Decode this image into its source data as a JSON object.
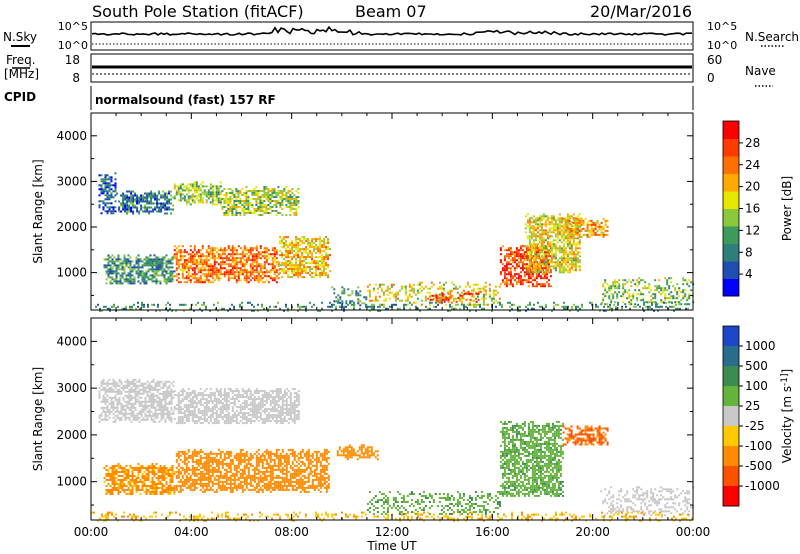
{
  "header": {
    "station": "South Pole Station (fitACF)",
    "beam": "Beam 07",
    "date": "20/Mar/2016"
  },
  "top_panels": {
    "nsky": {
      "label": "N.Sky",
      "tick_top": "10^5",
      "tick_bottom": "10^0"
    },
    "nsearch": {
      "label": "N.Search",
      "tick_top": "10^5",
      "tick_bottom": "10^0"
    },
    "freq": {
      "label_line1": "Freq.",
      "label_line2": "[MHz]",
      "tick_top": "18",
      "tick_bottom": "8"
    },
    "nave": {
      "label": "Nave",
      "tick_top": "60",
      "tick_bottom": "0"
    },
    "cpid": {
      "label": "CPID",
      "value": "normalsound (fast) 157 RF"
    }
  },
  "chart_data": [
    {
      "type": "heatmap",
      "name": "power",
      "ylabel": "Slant Range [km]",
      "ylim": [
        180,
        4500
      ],
      "yticks": [
        "1000",
        "2000",
        "3000",
        "4000"
      ],
      "xlim": [
        0,
        24
      ],
      "colorbar": {
        "label": "Power [dB]",
        "ticks": [
          "4",
          "8",
          "12",
          "16",
          "20",
          "24",
          "28"
        ],
        "range": [
          0,
          32
        ],
        "colors": [
          "#0000ff",
          "#1f4eb0",
          "#2f7e7e",
          "#3c9a5a",
          "#8cc83c",
          "#e6e600",
          "#ffaa00",
          "#ff7000",
          "#ff3c00",
          "#ff0000"
        ]
      },
      "echo_regions": [
        {
          "t0": 0.3,
          "t1": 1.0,
          "r0": 2300,
          "r1": 3200,
          "value": 6
        },
        {
          "t0": 1.0,
          "t1": 3.3,
          "r0": 2300,
          "r1": 2800,
          "value": 8
        },
        {
          "t0": 3.3,
          "t1": 5.2,
          "r0": 2500,
          "r1": 3000,
          "value": 14
        },
        {
          "t0": 5.2,
          "t1": 8.3,
          "r0": 2250,
          "r1": 2900,
          "value": 15
        },
        {
          "t0": 0.5,
          "t1": 3.3,
          "r0": 750,
          "r1": 1400,
          "value": 10
        },
        {
          "t0": 3.3,
          "t1": 7.5,
          "r0": 800,
          "r1": 1600,
          "value": 24
        },
        {
          "t0": 7.5,
          "t1": 9.5,
          "r0": 900,
          "r1": 1800,
          "value": 20
        },
        {
          "t0": 9.5,
          "t1": 11.0,
          "r0": 300,
          "r1": 700,
          "value": 10
        },
        {
          "t0": 11.0,
          "t1": 16.3,
          "r0": 300,
          "r1": 800,
          "value": 18
        },
        {
          "t0": 13.5,
          "t1": 15.5,
          "r0": 350,
          "r1": 600,
          "value": 27
        },
        {
          "t0": 16.3,
          "t1": 18.3,
          "r0": 700,
          "r1": 1600,
          "value": 27
        },
        {
          "t0": 17.3,
          "t1": 19.5,
          "r0": 1000,
          "r1": 2300,
          "value": 18
        },
        {
          "t0": 18.8,
          "t1": 20.6,
          "r0": 1800,
          "r1": 2200,
          "value": 21
        },
        {
          "t0": 20.3,
          "t1": 24.0,
          "r0": 300,
          "r1": 900,
          "value": 14
        },
        {
          "t0": 0.0,
          "t1": 24.0,
          "r0": 180,
          "r1": 360,
          "value": 10
        }
      ]
    },
    {
      "type": "heatmap",
      "name": "velocity",
      "xlabel": "Time UT",
      "ylabel": "Slant Range [km]",
      "ylim": [
        180,
        4500
      ],
      "yticks": [
        "1000",
        "2000",
        "3000",
        "4000"
      ],
      "xlim": [
        0,
        24
      ],
      "xticks": [
        "00:00",
        "04:00",
        "08:00",
        "12:00",
        "16:00",
        "20:00",
        "00:00"
      ],
      "colorbar": {
        "label": "Velocity [m s^-1]",
        "ticks": [
          "1000",
          "500",
          "100",
          "25",
          "-25",
          "-100",
          "-500",
          "-1000"
        ],
        "colors": [
          "#1e46c8",
          "#286e8c",
          "#3c8c50",
          "#64b43c",
          "#c8c8c8",
          "#ffc800",
          "#ff8c00",
          "#ff5000",
          "#ff0000"
        ]
      },
      "echo_regions": [
        {
          "t0": 0.3,
          "t1": 3.3,
          "r0": 2300,
          "r1": 3200,
          "value": 0
        },
        {
          "t0": 3.3,
          "t1": 8.3,
          "r0": 2250,
          "r1": 3000,
          "value": 5
        },
        {
          "t0": 0.5,
          "t1": 3.3,
          "r0": 750,
          "r1": 1400,
          "value": -150
        },
        {
          "t0": 3.3,
          "t1": 9.5,
          "r0": 800,
          "r1": 1700,
          "value": -300
        },
        {
          "t0": 9.8,
          "t1": 11.4,
          "r0": 1500,
          "r1": 1800,
          "value": -250
        },
        {
          "t0": 11.0,
          "t1": 16.3,
          "r0": 300,
          "r1": 800,
          "value": 80
        },
        {
          "t0": 16.3,
          "t1": 18.8,
          "r0": 700,
          "r1": 2300,
          "value": 70
        },
        {
          "t0": 18.8,
          "t1": 20.6,
          "r0": 1800,
          "r1": 2200,
          "value": -600
        },
        {
          "t0": 20.3,
          "t1": 24.0,
          "r0": 300,
          "r1": 900,
          "value": 10
        },
        {
          "t0": 0.0,
          "t1": 24.0,
          "r0": 180,
          "r1": 360,
          "value": -80
        }
      ]
    }
  ]
}
